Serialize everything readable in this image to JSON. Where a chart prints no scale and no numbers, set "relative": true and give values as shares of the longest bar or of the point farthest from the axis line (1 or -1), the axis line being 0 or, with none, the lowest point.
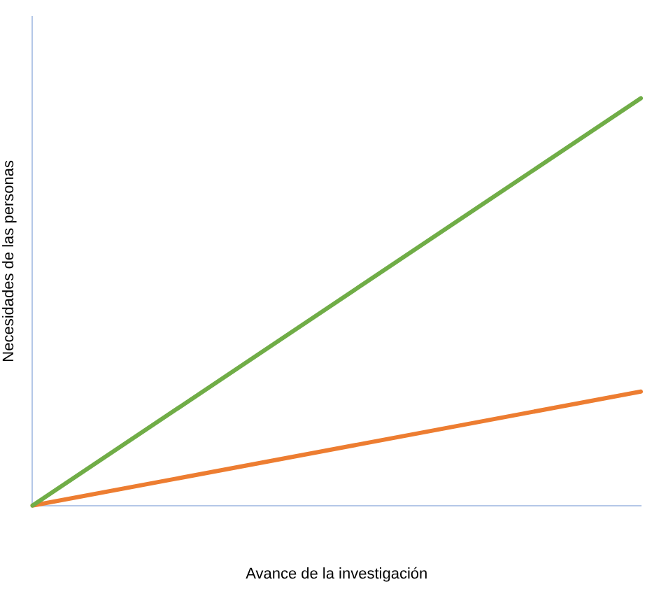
{
  "chart_data": {
    "type": "line",
    "relative": true,
    "xlabel": "Avance de la investigación",
    "ylabel": "Necesidades de las personas",
    "categories": [
      null,
      null
    ],
    "series": [
      {
        "color": "#70ad47",
        "values": [
          0,
          1
        ]
      },
      {
        "color": "#ed7d31",
        "values": [
          0,
          0.28
        ]
      }
    ],
    "grid": false,
    "legend": false,
    "marker": "none",
    "line_style": "solid"
  }
}
